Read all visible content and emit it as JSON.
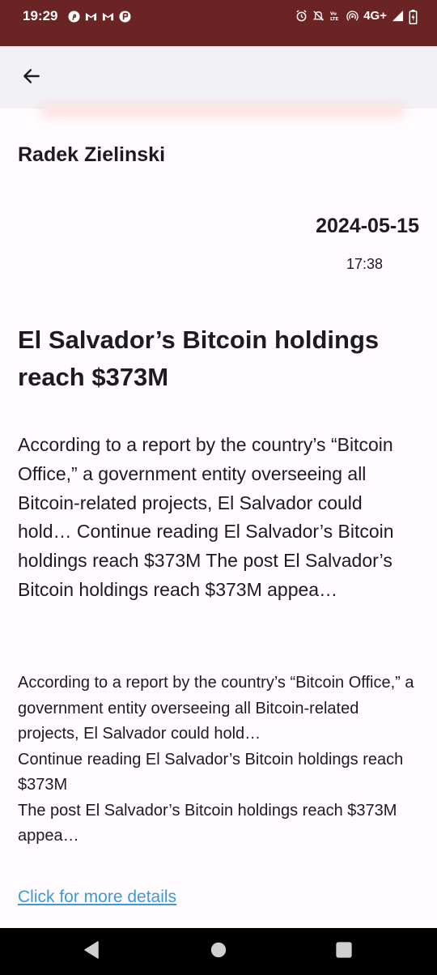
{
  "status_bar": {
    "time": "19:29",
    "left_icons": [
      "pinterest-icon",
      "gmail-icon",
      "gmail-icon",
      "notification-app-icon"
    ],
    "network_label": "4G+",
    "right_icons": [
      "alarm-icon",
      "mute-icon",
      "volte-icon",
      "hotspot-icon",
      "signal-icon",
      "battery-icon"
    ],
    "background_color": "#6b2424"
  },
  "app_bar": {
    "back_icon": "arrow-back-icon"
  },
  "post": {
    "author": "Radek Zielinski",
    "date": "2024-05-15",
    "time": "17:38",
    "title": "El Salvador’s Bitcoin holdings reach $373M",
    "summary": "According to a report by the country’s “Bitcoin Office,” a government entity overseeing all Bitcoin-related projects, El Salvador could hold… Continue reading El Salvador’s Bitcoin holdings reach $373M The post El Salvador’s Bitcoin holdings reach $373M appea…",
    "body": "According to a report by the country’s “Bitcoin Office,” a government entity overseeing all Bitcoin-related projects, El Salvador could hold…\nContinue reading El Salvador’s Bitcoin holdings reach $373M\nThe post El Salvador’s Bitcoin holdings reach $373M appea…",
    "link_text": "Click for more details",
    "link_color": "#3b9ad6"
  },
  "nav_bar": {
    "buttons": [
      "back-triangle-icon",
      "home-circle-icon",
      "recents-square-icon"
    ]
  }
}
